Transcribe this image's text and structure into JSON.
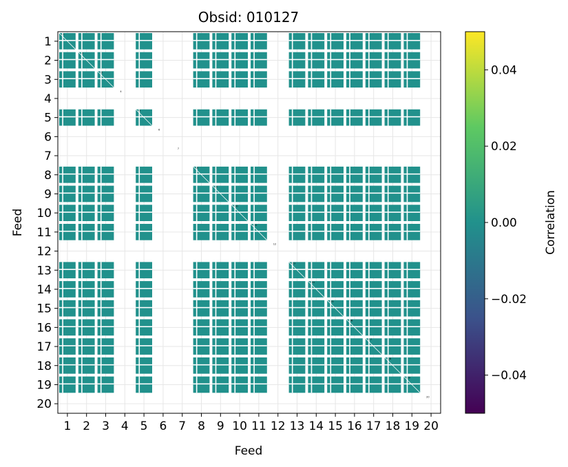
{
  "chart_data": {
    "type": "heatmap",
    "title": "Obsid: 010127",
    "xlabel": "Feed",
    "ylabel": "Feed",
    "x_ticks": [
      "1",
      "2",
      "3",
      "4",
      "5",
      "6",
      "7",
      "8",
      "9",
      "10",
      "11",
      "12",
      "13",
      "14",
      "15",
      "16",
      "17",
      "18",
      "19",
      "20"
    ],
    "y_ticks": [
      "1",
      "2",
      "3",
      "4",
      "5",
      "6",
      "7",
      "8",
      "9",
      "10",
      "11",
      "12",
      "13",
      "14",
      "15",
      "16",
      "17",
      "18",
      "19",
      "20"
    ],
    "feeds": [
      1,
      2,
      3,
      4,
      5,
      6,
      7,
      8,
      9,
      10,
      11,
      12,
      13,
      14,
      15,
      16,
      17,
      18,
      19,
      20
    ],
    "active_feeds": [
      1,
      2,
      3,
      5,
      8,
      9,
      10,
      11,
      13,
      14,
      15,
      16,
      17,
      18,
      19
    ],
    "empty_feeds": [
      4,
      6,
      7,
      12,
      20
    ],
    "diagonal_labels": [
      "1",
      "2",
      "3",
      "4",
      "5",
      "6",
      "7",
      "8",
      "9",
      "10",
      "11",
      "12",
      "13",
      "14",
      "15",
      "16",
      "17",
      "18",
      "19",
      "20"
    ],
    "value_shown": 0.0,
    "grid": true,
    "colorbar": {
      "label": "Correlation",
      "vmin": -0.05,
      "vmax": 0.05,
      "ticks": [
        "0.04",
        "0.02",
        "0.00",
        "−0.02",
        "−0.04"
      ],
      "tick_values": [
        0.04,
        0.02,
        0.0,
        -0.02,
        -0.04
      ],
      "colormap": "viridis",
      "colors": [
        "#440154",
        "#3b528b",
        "#21918c",
        "#5ec962",
        "#fde725"
      ]
    },
    "cell_color": "#21918c"
  }
}
